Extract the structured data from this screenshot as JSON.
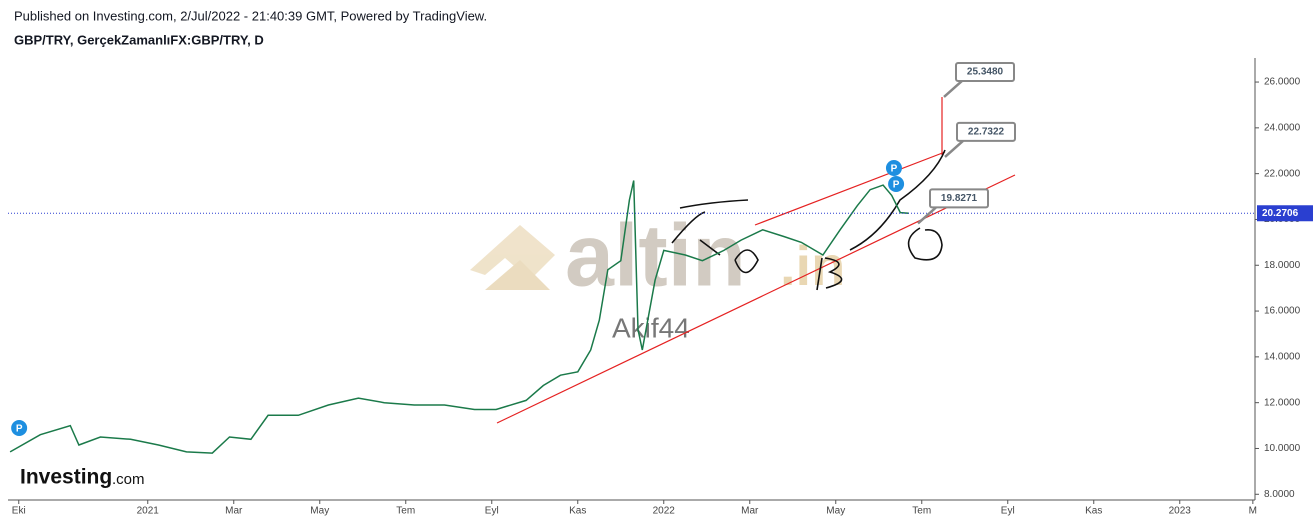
{
  "header": {
    "published": "Published on Investing.com, 2/Jul/2022 - 21:40:39 GMT, Powered by TradingView.",
    "symbol": "GBP/TRY, GerçekZamanlıFX:GBP/TRY, D"
  },
  "watermarks": {
    "site": "altin",
    "site_suffix": ".in",
    "author": "Akif44",
    "brand": "Investing",
    "brand_suffix": ".com"
  },
  "chart_data": {
    "type": "line",
    "color": "#1b7a4a",
    "x": [
      -0.2,
      0.5,
      1.2,
      1.4,
      1.9,
      2.6,
      3.25,
      3.9,
      4.5,
      4.9,
      5.4,
      5.8,
      6.5,
      7.2,
      7.9,
      8.5,
      9.2,
      9.9,
      10.6,
      11.1,
      11.8,
      12.2,
      12.6,
      13.0,
      13.3,
      13.5,
      13.7,
      14.0,
      14.2,
      14.3,
      14.4,
      14.5,
      14.8,
      15.0,
      15.5,
      15.9,
      16.4,
      16.8,
      17.3,
      17.8,
      18.2,
      18.7,
      19.1,
      19.5,
      19.8,
      20.1,
      20.3,
      20.5,
      20.7
    ],
    "values": [
      9.85,
      10.6,
      11.0,
      10.15,
      10.5,
      10.4,
      10.15,
      9.85,
      9.8,
      10.5,
      10.4,
      11.45,
      11.45,
      11.9,
      12.2,
      12.0,
      11.9,
      11.9,
      11.7,
      11.7,
      12.1,
      12.75,
      13.2,
      13.35,
      14.3,
      15.6,
      17.8,
      18.2,
      20.85,
      21.7,
      15.2,
      14.3,
      17.35,
      18.65,
      18.45,
      18.2,
      18.65,
      19.1,
      19.55,
      19.25,
      19.0,
      18.45,
      19.55,
      20.6,
      21.3,
      21.5,
      21.05,
      20.3,
      20.27
    ],
    "xlim": [
      -0.25,
      28.75
    ],
    "xticks": [
      {
        "value": 0,
        "label": "Eki"
      },
      {
        "value": 3,
        "label": "2021"
      },
      {
        "value": 5,
        "label": "Mar"
      },
      {
        "value": 7,
        "label": "May"
      },
      {
        "value": 9,
        "label": "Tem"
      },
      {
        "value": 11,
        "label": "Eyl"
      },
      {
        "value": 13,
        "label": "Kas"
      },
      {
        "value": 15,
        "label": "2022"
      },
      {
        "value": 17,
        "label": "Mar"
      },
      {
        "value": 19,
        "label": "May"
      },
      {
        "value": 21,
        "label": "Tem"
      },
      {
        "value": 23,
        "label": "Eyl"
      },
      {
        "value": 25,
        "label": "Kas"
      },
      {
        "value": 27,
        "label": "2023"
      },
      {
        "value": 28.7,
        "label": "M"
      }
    ],
    "ylim": [
      7.75,
      27.05
    ],
    "yticks": [
      {
        "value": 8,
        "label": "8.0000"
      },
      {
        "value": 10,
        "label": "10.0000"
      },
      {
        "value": 12,
        "label": "12.0000"
      },
      {
        "value": 14,
        "label": "14.0000"
      },
      {
        "value": 16,
        "label": "16.0000"
      },
      {
        "value": 18,
        "label": "18.0000"
      },
      {
        "value": 20,
        "label": "20.0000"
      },
      {
        "value": 22,
        "label": "22.0000"
      },
      {
        "value": 24,
        "label": "24.0000"
      },
      {
        "value": 26,
        "label": "26.0000"
      }
    ],
    "last_price": 20.2706,
    "annotations": [
      {
        "value": 25.348,
        "label": "25.3480"
      },
      {
        "value": 22.7322,
        "label": "22.7322"
      },
      {
        "value": 19.8271,
        "label": "19.8271"
      }
    ],
    "events": [
      {
        "x": -0.2,
        "label": "P"
      },
      {
        "x": 20.4,
        "label": "P"
      },
      {
        "x": 20.45,
        "label": "P"
      }
    ]
  }
}
